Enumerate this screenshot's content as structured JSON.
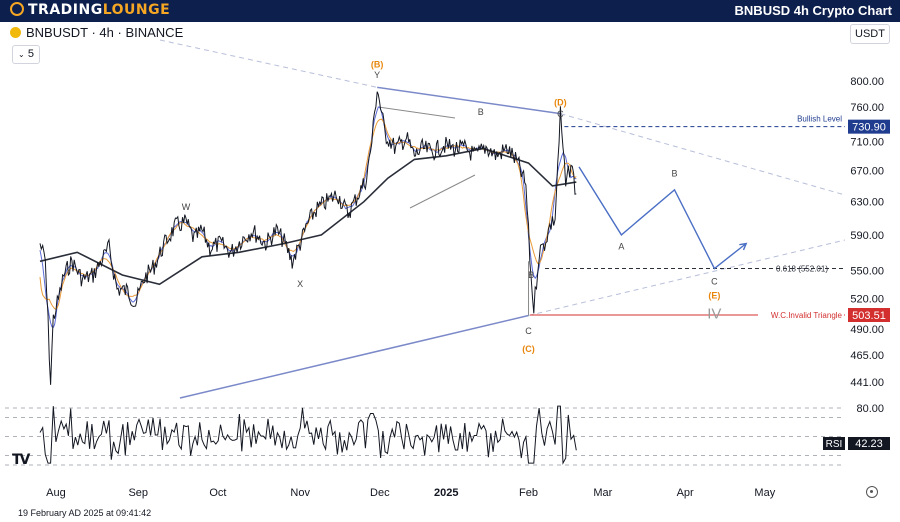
{
  "header": {
    "logo_left": "TRADING",
    "logo_right": "LOUNGE",
    "title": "BNBUSD 4h Crypto Chart"
  },
  "toolbar": {
    "symbol_info": "BNBUSDT · 4h · BINANCE",
    "collapse_count": "5",
    "currency": "USDT",
    "tv_mark": "TV"
  },
  "footer": {
    "timestamp": "19 February AD 2025 at 09:41:42"
  },
  "colors": {
    "price": "#131722",
    "ma_fast": "#5b6bd6",
    "ma_slow": "#e89b3a",
    "ma_long": "#2a2e39",
    "triangle": "#7b89c9",
    "projection": "#4a6fc4",
    "bullish": "#1f3c8f",
    "invalid": "#d32f2f",
    "wave_orange": "#e8860c"
  },
  "chart_data": [
    {
      "type": "line",
      "title": "",
      "y_axis": {
        "ticks": [
          800,
          760,
          710,
          670,
          630,
          590,
          550,
          520,
          490,
          465,
          441
        ],
        "tick_labels": [
          "800.00",
          "760.00",
          "710.00",
          "670.00",
          "630.00",
          "590.00",
          "550.00",
          "520.00",
          "490.00",
          "465.00",
          "441.00"
        ],
        "scale": "log"
      },
      "x_axis": {
        "labels": [
          "Aug",
          "Sep",
          "Oct",
          "Nov",
          "Dec",
          "2025",
          "Feb",
          "Mar",
          "Apr",
          "May"
        ],
        "range": [
          "2024-08-01",
          "2025-05-15"
        ]
      },
      "series": [
        {
          "role": "price",
          "x": [
            "2024-08-01",
            "2024-08-03",
            "2024-08-05",
            "2024-08-06",
            "2024-08-08",
            "2024-08-10",
            "2024-08-13",
            "2024-08-17",
            "2024-08-21",
            "2024-08-25",
            "2024-08-27",
            "2024-08-30",
            "2024-09-03",
            "2024-09-06",
            "2024-09-09",
            "2024-09-13",
            "2024-09-17",
            "2024-09-21",
            "2024-09-25",
            "2024-09-28",
            "2024-10-01",
            "2024-10-04",
            "2024-10-08",
            "2024-10-12",
            "2024-10-16",
            "2024-10-20",
            "2024-10-25",
            "2024-10-29",
            "2024-11-01",
            "2024-11-04",
            "2024-11-07",
            "2024-11-10",
            "2024-11-13",
            "2024-11-17",
            "2024-11-21",
            "2024-11-25",
            "2024-11-29",
            "2024-12-02",
            "2024-12-04",
            "2024-12-06",
            "2024-12-09",
            "2024-12-13",
            "2024-12-17",
            "2024-12-20",
            "2024-12-23",
            "2024-12-27",
            "2024-12-31",
            "2025-01-04",
            "2025-01-08",
            "2025-01-12",
            "2025-01-16",
            "2025-01-20",
            "2025-01-24",
            "2025-01-28",
            "2025-01-31",
            "2025-02-02",
            "2025-02-03",
            "2025-02-05",
            "2025-02-07",
            "2025-02-09",
            "2025-02-11",
            "2025-02-13",
            "2025-02-15",
            "2025-02-17",
            "2025-02-19"
          ],
          "values": [
            580,
            560,
            440,
            500,
            520,
            545,
            560,
            540,
            545,
            565,
            575,
            530,
            528,
            515,
            540,
            555,
            580,
            600,
            605,
            585,
            595,
            575,
            580,
            570,
            585,
            595,
            580,
            595,
            582,
            560,
            580,
            605,
            620,
            630,
            640,
            615,
            640,
            660,
            710,
            790,
            720,
            700,
            715,
            690,
            700,
            695,
            705,
            700,
            700,
            690,
            702,
            690,
            700,
            680,
            650,
            540,
            510,
            570,
            580,
            600,
            610,
            750,
            650,
            680,
            640
          ]
        },
        {
          "role": "moving-average-long",
          "x": [
            "2024-08-01",
            "2024-08-15",
            "2024-09-01",
            "2024-09-15",
            "2024-10-01",
            "2024-10-15",
            "2024-11-01",
            "2024-11-15",
            "2024-12-01",
            "2024-12-10",
            "2024-12-20",
            "2025-01-01",
            "2025-01-15",
            "2025-02-01",
            "2025-02-10",
            "2025-02-19"
          ],
          "values": [
            560,
            570,
            545,
            535,
            565,
            570,
            580,
            590,
            630,
            660,
            685,
            690,
            700,
            680,
            650,
            655
          ]
        }
      ],
      "levels": [
        {
          "label": "Bullish Level",
          "value": 730.9,
          "price_label": "730.90"
        },
        {
          "label": "0.618 (552.01)",
          "value": 552.01
        },
        {
          "label": "W.C.Invalid Triangle",
          "value": 503.51,
          "price_label": "503.51"
        }
      ],
      "wave_labels": [
        {
          "text": "W",
          "x": "2024-09-25",
          "y": 620
        },
        {
          "text": "X",
          "x": "2024-11-07",
          "y": 532
        },
        {
          "text": "Y",
          "x": "2024-12-06",
          "y": 805
        },
        {
          "text": "(B)",
          "x": "2024-12-06",
          "y": 822,
          "color": "orange"
        },
        {
          "text": "B",
          "x": "2025-01-14",
          "y": 748
        },
        {
          "text": "B",
          "x": "2025-02-02",
          "y": 542
        },
        {
          "text": "C",
          "x": "2025-02-01",
          "y": 485
        },
        {
          "text": "(C)",
          "x": "2025-02-01",
          "y": 468,
          "color": "orange"
        },
        {
          "text": "C",
          "x": "2025-02-13",
          "y": 745
        },
        {
          "text": "(D)",
          "x": "2025-02-13",
          "y": 762,
          "color": "orange"
        }
      ],
      "projection": {
        "x": [
          "2025-02-20",
          "2025-03-08",
          "2025-03-28",
          "2025-04-12",
          "2025-04-24"
        ],
        "values": [
          675,
          590,
          645,
          552,
          580
        ],
        "labels": [
          {
            "text": "A",
            "x": "2025-03-08",
            "y": 573
          },
          {
            "text": "B",
            "x": "2025-03-28",
            "y": 662
          },
          {
            "text": "C",
            "x": "2025-04-12",
            "y": 535
          },
          {
            "text": "(E)",
            "x": "2025-04-12",
            "y": 520,
            "color": "orange"
          },
          {
            "text": "IV",
            "x": "2025-04-12",
            "y": 500
          }
        ]
      }
    },
    {
      "type": "line",
      "title": "",
      "indicator": "RSI",
      "value_label": "42.23",
      "y_axis": {
        "ticks": [
          80
        ],
        "tick_labels": [
          "80.00"
        ],
        "range": [
          0,
          100
        ]
      }
    }
  ]
}
